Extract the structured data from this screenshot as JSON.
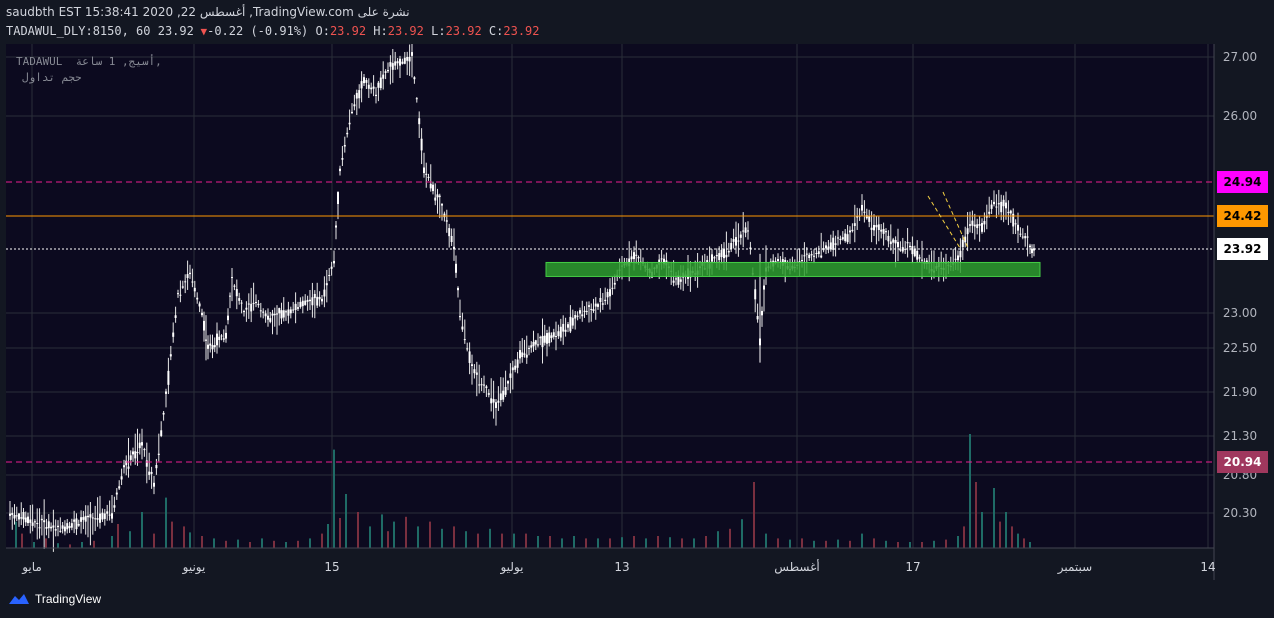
{
  "header": {
    "line1": "saudbth EST 15:38:41 2020 ,22 أغسطس ,TradingView.com نشرة على",
    "symbol_info": "TADAWUL_DLY:8150, 60 23.92",
    "change": "-0.22 (-0.91%)",
    "o_label": "O:",
    "o_value": "23.92",
    "h_label": "H:",
    "h_value": "23.92",
    "l_label": "L:",
    "l_value": "23.92",
    "c_label": "C:",
    "c_value": "23.92"
  },
  "watermark": {
    "line1": "TADAWUL  أسيج, 1 ساعة,",
    "line2": "حجم تداول"
  },
  "price_tags": {
    "upper_dashed": "24.94",
    "orange": "24.42",
    "current": "23.92",
    "lower_dashed": "20.94"
  },
  "footer": {
    "brand": "TradingView"
  },
  "colors": {
    "plot_bg": "#0c0a1f",
    "grid": "#2a2e39",
    "magenta_line": "#e91e8f",
    "magenta_tag": "#ff00ff",
    "orange": "#ff9800",
    "current_tag_bg": "#ffffff",
    "lower_tag_bg": "#a0385e",
    "green_zone": "#2e9e2e",
    "dashed_trend": "#f5d142"
  },
  "chart_data": {
    "type": "candlestick",
    "y_axis_ticks": [
      "27.00",
      "26.00",
      "23.00",
      "22.50",
      "21.90",
      "21.30",
      "20.80",
      "20.30"
    ],
    "x_axis_ticks": [
      "مايو",
      "يونيو",
      "15",
      "يوليو",
      "13",
      "أغسطس",
      "17",
      "سبتمبر",
      "14"
    ],
    "levels": {
      "resistance_dashed": 24.94,
      "orange_line": 24.42,
      "last_price": 23.92,
      "support_dashed": 20.94
    },
    "green_zone": {
      "from_price": 23.55,
      "to_price": 23.8,
      "label": ""
    },
    "price_path": [
      [
        0,
        20.3
      ],
      [
        3,
        20.2
      ],
      [
        8,
        20.1
      ],
      [
        13,
        20.2
      ],
      [
        17,
        20.3
      ],
      [
        19,
        20.9
      ],
      [
        22,
        21.2
      ],
      [
        24,
        20.7
      ],
      [
        26,
        21.8
      ],
      [
        28,
        23.3
      ],
      [
        30,
        23.6
      ],
      [
        32,
        23.0
      ],
      [
        33,
        22.5
      ],
      [
        36,
        22.7
      ],
      [
        37,
        23.5
      ],
      [
        39,
        23.0
      ],
      [
        41,
        23.2
      ],
      [
        43,
        22.9
      ],
      [
        46,
        23.0
      ],
      [
        48,
        23.1
      ],
      [
        50,
        23.2
      ],
      [
        52,
        23.2
      ],
      [
        54,
        23.8
      ],
      [
        55,
        25.2
      ],
      [
        57,
        26.1
      ],
      [
        59,
        26.6
      ],
      [
        61,
        26.4
      ],
      [
        63,
        26.8
      ],
      [
        65,
        26.9
      ],
      [
        67,
        27.0
      ],
      [
        69,
        25.2
      ],
      [
        72,
        24.6
      ],
      [
        74,
        24.0
      ],
      [
        75,
        23.0
      ],
      [
        77,
        22.2
      ],
      [
        79,
        22.0
      ],
      [
        81,
        21.7
      ],
      [
        83,
        22.0
      ],
      [
        85,
        22.4
      ],
      [
        88,
        22.6
      ],
      [
        91,
        22.7
      ],
      [
        93,
        22.8
      ],
      [
        95,
        23.0
      ],
      [
        98,
        23.1
      ],
      [
        100,
        23.3
      ],
      [
        102,
        23.7
      ],
      [
        104,
        23.9
      ],
      [
        107,
        23.6
      ],
      [
        109,
        23.8
      ],
      [
        111,
        23.5
      ],
      [
        113,
        23.6
      ],
      [
        115,
        23.7
      ],
      [
        117,
        23.8
      ],
      [
        119,
        23.9
      ],
      [
        121,
        24.1
      ],
      [
        123,
        24.3
      ],
      [
        125,
        22.6
      ],
      [
        126,
        23.7
      ],
      [
        128,
        23.8
      ],
      [
        130,
        23.7
      ],
      [
        132,
        23.8
      ],
      [
        134,
        23.9
      ],
      [
        136,
        24.0
      ],
      [
        138,
        24.1
      ],
      [
        140,
        24.2
      ],
      [
        142,
        24.6
      ],
      [
        144,
        24.3
      ],
      [
        146,
        24.2
      ],
      [
        148,
        24.0
      ],
      [
        150,
        24.0
      ],
      [
        152,
        23.8
      ],
      [
        154,
        23.7
      ],
      [
        156,
        23.7
      ],
      [
        158,
        23.8
      ],
      [
        160,
        24.4
      ],
      [
        162,
        24.3
      ],
      [
        164,
        24.7
      ],
      [
        166,
        24.6
      ],
      [
        168,
        24.3
      ],
      [
        170,
        24.0
      ],
      [
        171,
        23.9
      ]
    ],
    "path_x_range": [
      0,
      200
    ],
    "volume": [
      [
        1,
        0.22,
        "g"
      ],
      [
        2,
        0.12,
        "r"
      ],
      [
        4,
        0.05,
        "g"
      ],
      [
        6,
        0.08,
        "r"
      ],
      [
        8,
        0.04,
        "g"
      ],
      [
        10,
        0.03,
        "r"
      ],
      [
        12,
        0.05,
        "g"
      ],
      [
        14,
        0.06,
        "r"
      ],
      [
        17,
        0.1,
        "g"
      ],
      [
        18,
        0.2,
        "r"
      ],
      [
        20,
        0.14,
        "g"
      ],
      [
        22,
        0.3,
        "g"
      ],
      [
        24,
        0.12,
        "r"
      ],
      [
        26,
        0.42,
        "g"
      ],
      [
        27,
        0.22,
        "r"
      ],
      [
        29,
        0.18,
        "r"
      ],
      [
        30,
        0.13,
        "g"
      ],
      [
        32,
        0.1,
        "r"
      ],
      [
        34,
        0.08,
        "g"
      ],
      [
        36,
        0.06,
        "r"
      ],
      [
        38,
        0.07,
        "g"
      ],
      [
        40,
        0.05,
        "r"
      ],
      [
        42,
        0.08,
        "g"
      ],
      [
        44,
        0.06,
        "r"
      ],
      [
        46,
        0.05,
        "g"
      ],
      [
        48,
        0.06,
        "r"
      ],
      [
        50,
        0.08,
        "g"
      ],
      [
        52,
        0.12,
        "r"
      ],
      [
        53,
        0.2,
        "g"
      ],
      [
        54,
        0.82,
        "g"
      ],
      [
        55,
        0.25,
        "r"
      ],
      [
        56,
        0.45,
        "g"
      ],
      [
        58,
        0.3,
        "r"
      ],
      [
        60,
        0.18,
        "g"
      ],
      [
        62,
        0.28,
        "g"
      ],
      [
        63,
        0.14,
        "r"
      ],
      [
        64,
        0.22,
        "g"
      ],
      [
        66,
        0.26,
        "r"
      ],
      [
        68,
        0.18,
        "g"
      ],
      [
        70,
        0.22,
        "r"
      ],
      [
        72,
        0.16,
        "g"
      ],
      [
        74,
        0.18,
        "r"
      ],
      [
        76,
        0.14,
        "g"
      ],
      [
        78,
        0.12,
        "r"
      ],
      [
        80,
        0.16,
        "g"
      ],
      [
        82,
        0.12,
        "r"
      ],
      [
        84,
        0.12,
        "g"
      ],
      [
        86,
        0.12,
        "r"
      ],
      [
        88,
        0.1,
        "g"
      ],
      [
        90,
        0.1,
        "r"
      ],
      [
        92,
        0.08,
        "g"
      ],
      [
        94,
        0.1,
        "g"
      ],
      [
        96,
        0.08,
        "r"
      ],
      [
        98,
        0.08,
        "g"
      ],
      [
        100,
        0.08,
        "r"
      ],
      [
        102,
        0.09,
        "g"
      ],
      [
        104,
        0.1,
        "r"
      ],
      [
        106,
        0.08,
        "g"
      ],
      [
        108,
        0.1,
        "r"
      ],
      [
        110,
        0.09,
        "g"
      ],
      [
        112,
        0.08,
        "r"
      ],
      [
        114,
        0.08,
        "g"
      ],
      [
        116,
        0.1,
        "r"
      ],
      [
        118,
        0.14,
        "g"
      ],
      [
        120,
        0.16,
        "r"
      ],
      [
        122,
        0.24,
        "g"
      ],
      [
        124,
        0.55,
        "r"
      ],
      [
        126,
        0.12,
        "g"
      ],
      [
        128,
        0.08,
        "r"
      ],
      [
        130,
        0.07,
        "g"
      ],
      [
        132,
        0.08,
        "r"
      ],
      [
        134,
        0.06,
        "g"
      ],
      [
        136,
        0.06,
        "r"
      ],
      [
        138,
        0.07,
        "g"
      ],
      [
        140,
        0.06,
        "r"
      ],
      [
        142,
        0.12,
        "g"
      ],
      [
        144,
        0.08,
        "r"
      ],
      [
        146,
        0.06,
        "g"
      ],
      [
        148,
        0.05,
        "r"
      ],
      [
        150,
        0.05,
        "g"
      ],
      [
        152,
        0.05,
        "r"
      ],
      [
        154,
        0.06,
        "g"
      ],
      [
        156,
        0.07,
        "r"
      ],
      [
        158,
        0.1,
        "g"
      ],
      [
        159,
        0.18,
        "r"
      ],
      [
        160,
        0.95,
        "g"
      ],
      [
        161,
        0.55,
        "r"
      ],
      [
        162,
        0.3,
        "g"
      ],
      [
        164,
        0.5,
        "g"
      ],
      [
        165,
        0.22,
        "r"
      ],
      [
        166,
        0.3,
        "g"
      ],
      [
        167,
        0.18,
        "r"
      ],
      [
        168,
        0.12,
        "g"
      ],
      [
        169,
        0.08,
        "r"
      ],
      [
        170,
        0.05,
        "g"
      ]
    ]
  }
}
